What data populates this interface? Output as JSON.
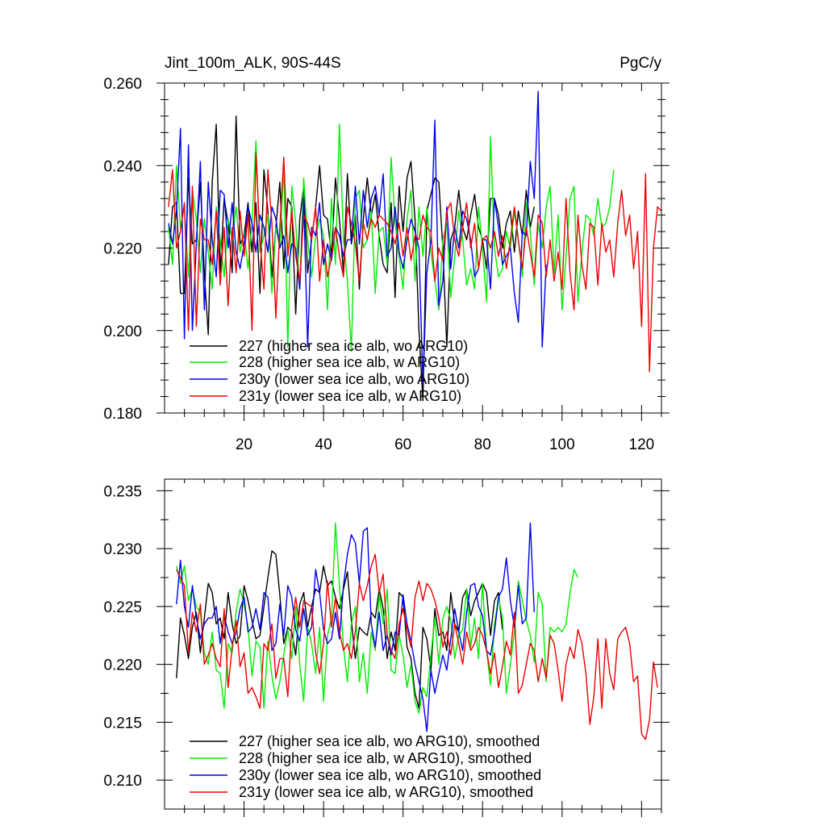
{
  "colors": {
    "s227": "#000000",
    "s228": "#00ee00",
    "s230y": "#0000ee",
    "s231y": "#ee0000"
  },
  "chart_data": [
    {
      "type": "line",
      "title": "Jint_100m_ALK, 90S-44S",
      "units": "PgC/y",
      "xlim": [
        0,
        125
      ],
      "ylim": [
        0.18,
        0.26
      ],
      "xticks": [
        20,
        40,
        60,
        80,
        100,
        120
      ],
      "yticks": [
        0.18,
        0.2,
        0.22,
        0.24,
        0.26
      ],
      "ytick_labels": [
        "0.180",
        "0.200",
        "0.220",
        "0.240",
        "0.260"
      ],
      "legend": [
        {
          "key": "s227",
          "label": "227 (higher sea ice alb, wo ARG10)"
        },
        {
          "key": "s228",
          "label": "228 (higher sea ice alb, w ARG10)"
        },
        {
          "key": "s230y",
          "label": "230y (lower sea ice alb, wo ARG10)"
        },
        {
          "key": "s231y",
          "label": "231y (lower sea ice alb, w ARG10)"
        }
      ],
      "series": [
        {
          "key": "s227",
          "x_start": 1,
          "values": [
            0.216,
            0.23,
            0.231,
            0.209,
            0.209,
            0.237,
            0.221,
            0.222,
            0.236,
            0.214,
            0.199,
            0.236,
            0.25,
            0.214,
            0.232,
            0.226,
            0.214,
            0.252,
            0.221,
            0.223,
            0.231,
            0.219,
            0.231,
            0.209,
            0.239,
            0.229,
            0.213,
            0.225,
            0.236,
            0.215,
            0.232,
            0.23,
            0.204,
            0.227,
            0.235,
            0.214,
            0.222,
            0.23,
            0.24,
            0.228,
            0.227,
            0.218,
            0.237,
            0.227,
            0.214,
            0.238,
            0.221,
            0.228,
            0.21,
            0.227,
            0.237,
            0.228,
            0.233,
            0.223,
            0.216,
            0.214,
            0.231,
            0.208,
            0.235,
            0.224,
            0.237,
            0.241,
            0.227,
            0.2,
            0.183,
            0.229,
            0.233,
            0.237,
            0.236,
            0.22,
            0.196,
            0.222,
            0.225,
            0.234,
            0.225,
            0.222,
            0.228,
            0.233,
            0.225,
            0.222,
            0.215,
            0.232,
            0.232,
            0.228,
            0.22,
            0.226,
            0.229,
            0.219,
            0.229,
            0.223,
            0.234,
            0.225,
            0.23
          ]
        },
        {
          "key": "s228",
          "x_start": 1,
          "values": [
            0.225,
            0.216,
            0.24,
            0.225,
            0.23,
            0.213,
            0.234,
            0.227,
            0.214,
            0.227,
            0.219,
            0.21,
            0.23,
            0.222,
            0.213,
            0.227,
            0.222,
            0.23,
            0.219,
            0.224,
            0.215,
            0.226,
            0.246,
            0.219,
            0.223,
            0.228,
            0.209,
            0.225,
            0.22,
            0.24,
            0.196,
            0.235,
            0.226,
            0.21,
            0.237,
            0.222,
            0.213,
            0.223,
            0.227,
            0.223,
            0.205,
            0.232,
            0.216,
            0.25,
            0.222,
            0.212,
            0.195,
            0.232,
            0.234,
            0.22,
            0.222,
            0.229,
            0.209,
            0.224,
            0.225,
            0.216,
            0.242,
            0.226,
            0.218,
            0.21,
            0.227,
            0.234,
            0.212,
            0.23,
            0.218,
            0.23,
            0.219,
            0.212,
            0.205,
            0.222,
            0.226,
            0.208,
            0.218,
            0.229,
            0.222,
            0.211,
            0.215,
            0.21,
            0.23,
            0.22,
            0.207,
            0.247,
            0.22,
            0.213,
            0.215,
            0.224,
            0.22,
            0.229,
            0.222,
            0.213,
            0.231,
            0.224,
            0.211,
            0.226,
            0.22,
            0.23,
            0.235,
            0.214,
            0.228,
            0.205,
            0.218,
            0.232,
            0.235,
            0.207,
            0.219,
            0.228,
            0.227,
            0.223,
            0.232,
            0.225,
            0.226,
            0.23,
            0.239
          ]
        },
        {
          "key": "s230y",
          "x_start": 1,
          "values": [
            0.226,
            0.221,
            0.229,
            0.249,
            0.198,
            0.245,
            0.2,
            0.221,
            0.241,
            0.205,
            0.236,
            0.222,
            0.213,
            0.234,
            0.233,
            0.22,
            0.231,
            0.219,
            0.215,
            0.221,
            0.23,
            0.226,
            0.219,
            0.228,
            0.225,
            0.219,
            0.23,
            0.227,
            0.22,
            0.223,
            0.214,
            0.221,
            0.22,
            0.21,
            0.232,
            0.196,
            0.225,
            0.223,
            0.231,
            0.216,
            0.221,
            0.217,
            0.225,
            0.223,
            0.218,
            0.222,
            0.222,
            0.235,
            0.221,
            0.234,
            0.225,
            0.232,
            0.235,
            0.228,
            0.238,
            0.218,
            0.22,
            0.23,
            0.219,
            0.215,
            0.222,
            0.227,
            0.224,
            0.22,
            0.187,
            0.214,
            0.222,
            0.251,
            0.206,
            0.212,
            0.23,
            0.215,
            0.225,
            0.22,
            0.229,
            0.227,
            0.222,
            0.213,
            0.215,
            0.222,
            0.222,
            0.21,
            0.232,
            0.225,
            0.216,
            0.218,
            0.22,
            0.209,
            0.202,
            0.224,
            0.223,
            0.241,
            0.232,
            0.258,
            0.196,
            0.216
          ]
        },
        {
          "key": "s231y",
          "x_start": 1,
          "values": [
            0.23,
            0.239,
            0.22,
            0.224,
            0.231,
            0.2,
            0.235,
            0.201,
            0.227,
            0.222,
            0.222,
            0.216,
            0.229,
            0.211,
            0.225,
            0.206,
            0.225,
            0.214,
            0.229,
            0.218,
            0.228,
            0.2,
            0.243,
            0.222,
            0.21,
            0.239,
            0.226,
            0.203,
            0.225,
            0.242,
            0.218,
            0.229,
            0.218,
            0.212,
            0.228,
            0.226,
            0.222,
            0.23,
            0.212,
            0.222,
            0.213,
            0.218,
            0.225,
            0.218,
            0.213,
            0.23,
            0.226,
            0.221,
            0.212,
            0.226,
            0.222,
            0.227,
            0.225,
            0.228,
            0.227,
            0.226,
            0.224,
            0.221,
            0.226,
            0.218,
            0.225,
            0.217,
            0.223,
            0.222,
            0.228,
            0.225,
            0.224,
            0.212,
            0.22,
            0.217,
            0.229,
            0.231,
            0.222,
            0.218,
            0.225,
            0.231,
            0.22,
            0.226,
            0.215,
            0.222,
            0.223,
            0.22,
            0.224,
            0.218,
            0.223,
            0.215,
            0.222,
            0.23,
            0.222,
            0.215,
            0.225,
            0.219,
            0.213,
            0.228,
            0.226,
            0.213,
            0.222,
            0.212,
            0.219,
            0.21,
            0.232,
            0.214,
            0.205,
            0.228,
            0.216,
            0.21,
            0.226,
            0.225,
            0.211,
            0.226,
            0.219,
            0.222,
            0.213,
            0.226,
            0.234,
            0.223,
            0.228,
            0.215,
            0.224,
            0.201,
            0.238,
            0.19,
            0.22,
            0.23,
            0.229
          ]
        }
      ]
    },
    {
      "type": "line",
      "title": "",
      "xlim": [
        0,
        125
      ],
      "ylim": [
        0.2075,
        0.236
      ],
      "xticks": [
        20,
        40,
        60,
        80,
        100,
        120
      ],
      "yticks": [
        0.21,
        0.215,
        0.22,
        0.225,
        0.23,
        0.235
      ],
      "ytick_labels": [
        "0.210",
        "0.215",
        "0.220",
        "0.225",
        "0.230",
        "0.235"
      ],
      "legend": [
        {
          "key": "s227",
          "label": "227 (higher sea ice alb, wo ARG10), smoothed"
        },
        {
          "key": "s228",
          "label": "228 (higher sea ice alb, w ARG10), smoothed"
        },
        {
          "key": "s230y",
          "label": "230y (lower sea ice alb, wo ARG10), smoothed"
        },
        {
          "key": "s231y",
          "label": "231y (lower sea ice alb, w ARG10), smoothed"
        }
      ],
      "series": [
        {
          "key": "s227",
          "x_start": 3,
          "values": [
            0.2188,
            0.224,
            0.2225,
            0.2205,
            0.2232,
            0.2245,
            0.221,
            0.224,
            0.227,
            0.2262,
            0.2235,
            0.224,
            0.2222,
            0.2262,
            0.2235,
            0.2218,
            0.2225,
            0.2268,
            0.2255,
            0.2238,
            0.2222,
            0.2225,
            0.225,
            0.2275,
            0.2298,
            0.2295,
            0.226,
            0.2218,
            0.2232,
            0.2228,
            0.2208,
            0.2252,
            0.2262,
            0.2232,
            0.225,
            0.2265,
            0.2262,
            0.2285,
            0.2268,
            0.2272,
            0.2258,
            0.2248,
            0.2265,
            0.228,
            0.2238,
            0.2205,
            0.2232,
            0.2228,
            0.2225,
            0.2245,
            0.224,
            0.2265,
            0.2248,
            0.2205,
            0.2228,
            0.2212,
            0.2262,
            0.2258,
            0.2215,
            0.2205,
            0.2175,
            0.2162,
            0.2232,
            0.2222,
            0.2195,
            0.2248,
            0.2225,
            0.2228,
            0.2212,
            0.2262,
            0.2235,
            0.2228,
            0.2258,
            0.2265,
            0.2242,
            0.2255,
            0.2262,
            0.227,
            0.2262,
            0.2225,
            0.2255,
            0.2262,
            0.223
          ]
        },
        {
          "key": "s228",
          "x_start": 3,
          "values": [
            0.2285,
            0.227,
            0.2285,
            0.2255,
            0.2265,
            0.225,
            0.2245,
            0.221,
            0.22,
            0.2228,
            0.2195,
            0.2192,
            0.2162,
            0.2218,
            0.221,
            0.2245,
            0.2265,
            0.2252,
            0.2232,
            0.219,
            0.222,
            0.2215,
            0.2162,
            0.222,
            0.219,
            0.217,
            0.2185,
            0.2208,
            0.223,
            0.2205,
            0.225,
            0.22,
            0.2168,
            0.2232,
            0.2218,
            0.2192,
            0.2232,
            0.2168,
            0.2225,
            0.224,
            0.2322,
            0.2268,
            0.2215,
            0.2185,
            0.2235,
            0.225,
            0.2185,
            0.221,
            0.2175,
            0.2228,
            0.2212,
            0.226,
            0.2235,
            0.2265,
            0.2195,
            0.2192,
            0.2225,
            0.2208,
            0.218,
            0.22,
            0.2168,
            0.2158,
            0.218,
            0.2172,
            0.2208,
            0.224,
            0.22,
            0.224,
            0.225,
            0.2238,
            0.2205,
            0.2225,
            0.223,
            0.2265,
            0.2215,
            0.224,
            0.2205,
            0.227,
            0.2212,
            0.2182,
            0.2235,
            0.2258,
            0.224,
            0.2175,
            0.22,
            0.2228,
            0.2272,
            0.2255,
            0.2238,
            0.2225,
            0.2202,
            0.2262,
            0.2252,
            0.2185,
            0.2232,
            0.2228,
            0.2232,
            0.2228,
            0.2235,
            0.2262,
            0.2282,
            0.2275
          ]
        },
        {
          "key": "s230y",
          "x_start": 3,
          "values": [
            0.2252,
            0.229,
            0.225,
            0.2232,
            0.2268,
            0.224,
            0.2222,
            0.2235,
            0.224,
            0.224,
            0.225,
            0.2218,
            0.2242,
            0.2228,
            0.2218,
            0.2228,
            0.2248,
            0.2258,
            0.2228,
            0.2232,
            0.2248,
            0.223,
            0.2262,
            0.2258,
            0.2212,
            0.2218,
            0.2252,
            0.2225,
            0.2268,
            0.2258,
            0.223,
            0.222,
            0.2248,
            0.2225,
            0.2232,
            0.2282,
            0.2262,
            0.223,
            0.2218,
            0.2222,
            0.2245,
            0.2222,
            0.2268,
            0.2295,
            0.2312,
            0.2305,
            0.227,
            0.2315,
            0.2318,
            0.2235,
            0.2215,
            0.2245,
            0.2212,
            0.2225,
            0.2208,
            0.2228,
            0.2225,
            0.226,
            0.2235,
            0.222,
            0.22,
            0.2185,
            0.217,
            0.2142,
            0.2195,
            0.2175,
            0.2192,
            0.2208,
            0.2195,
            0.2222,
            0.2248,
            0.2228,
            0.2212,
            0.2245,
            0.2268,
            0.227,
            0.225,
            0.2242,
            0.2212,
            0.2208,
            0.2228,
            0.2258,
            0.2265,
            0.2292,
            0.2255,
            0.2232,
            0.2268,
            0.2235,
            0.224,
            0.2322,
            0.2245
          ]
        },
        {
          "key": "s231y",
          "x_start": 3,
          "values": [
            0.2282,
            0.2275,
            0.2268,
            0.221,
            0.2245,
            0.2228,
            0.2252,
            0.22,
            0.2208,
            0.2218,
            0.2205,
            0.2198,
            0.2248,
            0.218,
            0.2215,
            0.2238,
            0.2198,
            0.221,
            0.2175,
            0.218,
            0.2172,
            0.2162,
            0.2218,
            0.2212,
            0.2235,
            0.2188,
            0.2205,
            0.2205,
            0.2172,
            0.2232,
            0.2258,
            0.2232,
            0.2255,
            0.2252,
            0.225,
            0.221,
            0.2192,
            0.2218,
            0.2272,
            0.2232,
            0.2258,
            0.2228,
            0.2212,
            0.2218,
            0.2205,
            0.2228,
            0.227,
            0.2255,
            0.2268,
            0.2285,
            0.2295,
            0.2262,
            0.2278,
            0.2225,
            0.2212,
            0.2205,
            0.2235,
            0.2248,
            0.223,
            0.2215,
            0.2258,
            0.2272,
            0.2255,
            0.227,
            0.2265,
            0.2255,
            0.224,
            0.2215,
            0.2228,
            0.2208,
            0.2235,
            0.2218,
            0.22,
            0.2228,
            0.2212,
            0.2218,
            0.2232,
            0.2225,
            0.2212,
            0.2192,
            0.221,
            0.218,
            0.2198,
            0.222,
            0.2208,
            0.2245,
            0.2175,
            0.2182,
            0.22,
            0.2218,
            0.2212,
            0.2185,
            0.2205,
            0.2188,
            0.2225,
            0.2218,
            0.2195,
            0.2168,
            0.22,
            0.2215,
            0.2205,
            0.223,
            0.2218,
            0.2192,
            0.2148,
            0.2172,
            0.2222,
            0.2162,
            0.2222,
            0.2192,
            0.2178,
            0.2222,
            0.2228,
            0.2232,
            0.2218,
            0.2185,
            0.219,
            0.214,
            0.2135,
            0.2152,
            0.2202,
            0.218
          ]
        }
      ]
    }
  ]
}
